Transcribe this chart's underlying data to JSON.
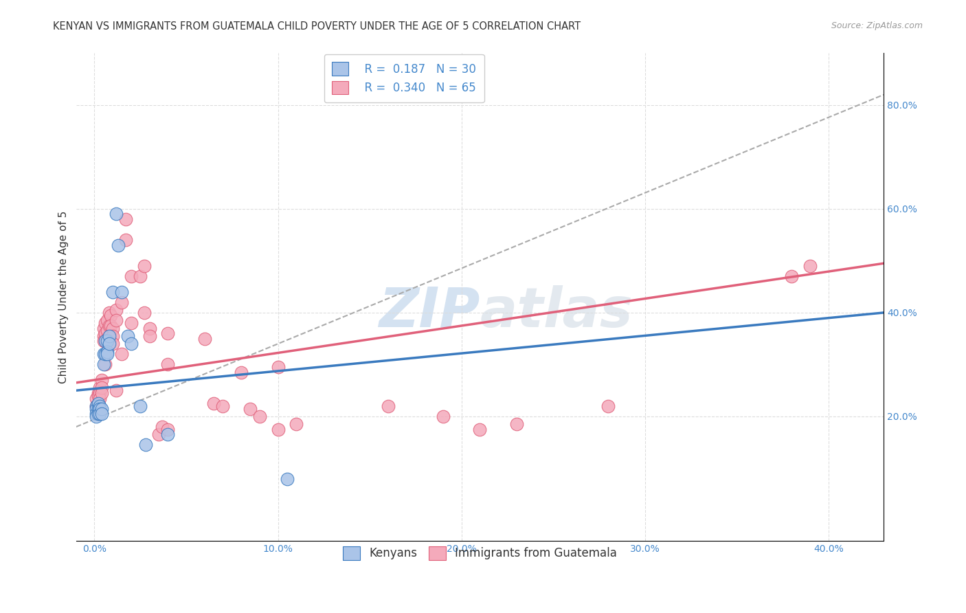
{
  "title": "KENYAN VS IMMIGRANTS FROM GUATEMALA CHILD POVERTY UNDER THE AGE OF 5 CORRELATION CHART",
  "source": "Source: ZipAtlas.com",
  "ylabel": "Child Poverty Under the Age of 5",
  "xlabel_ticks": [
    "0.0%",
    "10.0%",
    "20.0%",
    "30.0%",
    "40.0%"
  ],
  "ylabel_ticks": [
    "20.0%",
    "40.0%",
    "60.0%",
    "80.0%"
  ],
  "x_tick_vals": [
    0.0,
    0.1,
    0.2,
    0.3,
    0.4
  ],
  "y_tick_vals": [
    0.2,
    0.4,
    0.6,
    0.8
  ],
  "xlim": [
    -0.01,
    0.43
  ],
  "ylim": [
    -0.04,
    0.9
  ],
  "watermark": "ZIPatlas",
  "kenyan_color": "#aac4e8",
  "kenyan_line_color": "#3a7abf",
  "guatemalan_color": "#f4aabb",
  "guatemalan_line_color": "#e0607a",
  "trend_line_color": "#aaaaaa",
  "background_color": "#ffffff",
  "grid_color": "#dddddd",
  "title_fontsize": 10.5,
  "axis_label_fontsize": 11,
  "tick_fontsize": 10,
  "kenyan_points": [
    [
      0.001,
      0.22
    ],
    [
      0.001,
      0.215
    ],
    [
      0.001,
      0.205
    ],
    [
      0.001,
      0.2
    ],
    [
      0.002,
      0.225
    ],
    [
      0.002,
      0.215
    ],
    [
      0.002,
      0.205
    ],
    [
      0.003,
      0.22
    ],
    [
      0.003,
      0.215
    ],
    [
      0.003,
      0.205
    ],
    [
      0.004,
      0.215
    ],
    [
      0.004,
      0.205
    ],
    [
      0.005,
      0.32
    ],
    [
      0.005,
      0.3
    ],
    [
      0.006,
      0.345
    ],
    [
      0.006,
      0.32
    ],
    [
      0.007,
      0.345
    ],
    [
      0.007,
      0.325
    ],
    [
      0.007,
      0.32
    ],
    [
      0.008,
      0.355
    ],
    [
      0.008,
      0.34
    ],
    [
      0.01,
      0.44
    ],
    [
      0.012,
      0.59
    ],
    [
      0.013,
      0.53
    ],
    [
      0.015,
      0.44
    ],
    [
      0.018,
      0.355
    ],
    [
      0.02,
      0.34
    ],
    [
      0.025,
      0.22
    ],
    [
      0.028,
      0.145
    ],
    [
      0.04,
      0.165
    ],
    [
      0.105,
      0.08
    ]
  ],
  "guatemalan_points": [
    [
      0.001,
      0.235
    ],
    [
      0.001,
      0.22
    ],
    [
      0.002,
      0.245
    ],
    [
      0.002,
      0.24
    ],
    [
      0.002,
      0.225
    ],
    [
      0.003,
      0.255
    ],
    [
      0.003,
      0.245
    ],
    [
      0.003,
      0.235
    ],
    [
      0.003,
      0.215
    ],
    [
      0.004,
      0.27
    ],
    [
      0.004,
      0.255
    ],
    [
      0.004,
      0.245
    ],
    [
      0.005,
      0.37
    ],
    [
      0.005,
      0.355
    ],
    [
      0.005,
      0.345
    ],
    [
      0.006,
      0.38
    ],
    [
      0.006,
      0.36
    ],
    [
      0.006,
      0.345
    ],
    [
      0.006,
      0.3
    ],
    [
      0.007,
      0.385
    ],
    [
      0.007,
      0.365
    ],
    [
      0.007,
      0.35
    ],
    [
      0.008,
      0.4
    ],
    [
      0.008,
      0.375
    ],
    [
      0.008,
      0.355
    ],
    [
      0.009,
      0.395
    ],
    [
      0.009,
      0.375
    ],
    [
      0.01,
      0.37
    ],
    [
      0.01,
      0.355
    ],
    [
      0.01,
      0.34
    ],
    [
      0.012,
      0.405
    ],
    [
      0.012,
      0.385
    ],
    [
      0.012,
      0.25
    ],
    [
      0.015,
      0.42
    ],
    [
      0.015,
      0.32
    ],
    [
      0.017,
      0.54
    ],
    [
      0.017,
      0.58
    ],
    [
      0.02,
      0.47
    ],
    [
      0.02,
      0.38
    ],
    [
      0.025,
      0.47
    ],
    [
      0.027,
      0.49
    ],
    [
      0.027,
      0.4
    ],
    [
      0.03,
      0.37
    ],
    [
      0.03,
      0.355
    ],
    [
      0.035,
      0.165
    ],
    [
      0.037,
      0.18
    ],
    [
      0.04,
      0.36
    ],
    [
      0.04,
      0.3
    ],
    [
      0.04,
      0.175
    ],
    [
      0.06,
      0.35
    ],
    [
      0.065,
      0.225
    ],
    [
      0.07,
      0.22
    ],
    [
      0.08,
      0.285
    ],
    [
      0.085,
      0.215
    ],
    [
      0.09,
      0.2
    ],
    [
      0.1,
      0.295
    ],
    [
      0.1,
      0.175
    ],
    [
      0.11,
      0.185
    ],
    [
      0.16,
      0.22
    ],
    [
      0.19,
      0.2
    ],
    [
      0.21,
      0.175
    ],
    [
      0.23,
      0.185
    ],
    [
      0.28,
      0.22
    ],
    [
      0.38,
      0.47
    ],
    [
      0.39,
      0.49
    ]
  ]
}
